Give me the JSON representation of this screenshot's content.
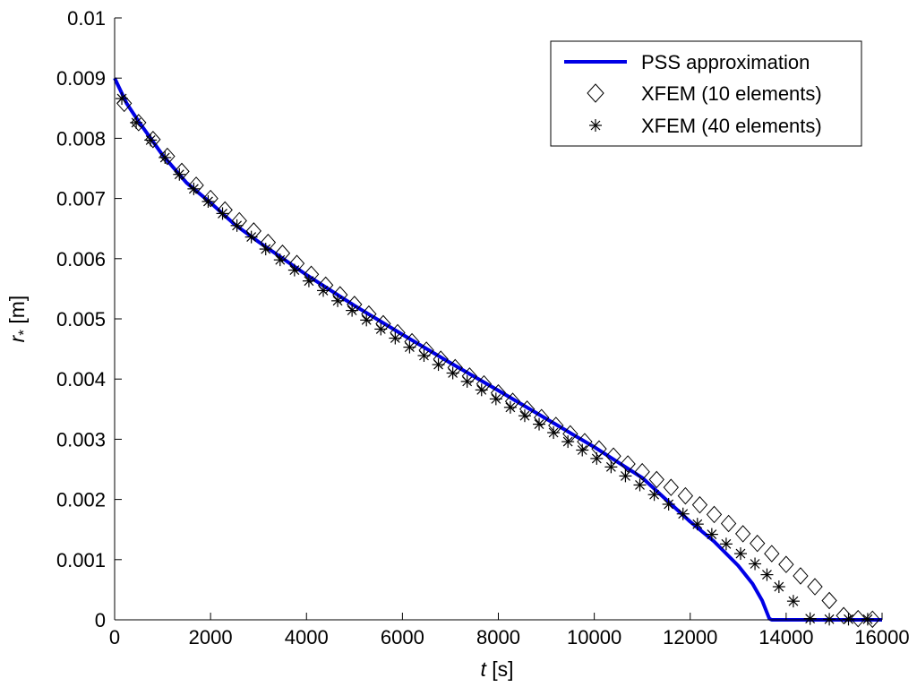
{
  "chart_data": {
    "type": "line",
    "title": "",
    "xlabel": {
      "symbol": "t",
      "unit": " [s]"
    },
    "ylabel": {
      "symbol": "r",
      "subscript": "*",
      "unit": " [m]"
    },
    "xlim": [
      0,
      16000
    ],
    "ylim": [
      0,
      0.01
    ],
    "xticks": [
      0,
      2000,
      4000,
      6000,
      8000,
      10000,
      12000,
      14000,
      16000
    ],
    "yticks": [
      0,
      0.001,
      0.002,
      0.003,
      0.004,
      0.005,
      0.006,
      0.007,
      0.008,
      0.009,
      0.01
    ],
    "xtick_labels": [
      "0",
      "2000",
      "4000",
      "6000",
      "8000",
      "10000",
      "12000",
      "14000",
      "16000"
    ],
    "ytick_labels": [
      "0",
      "0.001",
      "0.002",
      "0.003",
      "0.004",
      "0.005",
      "0.006",
      "0.007",
      "0.008",
      "0.009",
      "0.01"
    ],
    "grid": false,
    "legend_position": "top-right",
    "series": [
      {
        "name": "PSS approximation",
        "style": "line",
        "color": "#0000e6",
        "x": [
          0,
          250,
          500,
          1000,
          1500,
          2000,
          2500,
          3000,
          4000,
          5000,
          6000,
          7000,
          8000,
          9000,
          10000,
          11000,
          12000,
          12500,
          13000,
          13300,
          13500,
          13650,
          13700,
          14000,
          16000
        ],
        "y": [
          0.009,
          0.00858,
          0.00828,
          0.00772,
          0.00726,
          0.00693,
          0.00657,
          0.00628,
          0.00573,
          0.00522,
          0.00474,
          0.00427,
          0.00381,
          0.00334,
          0.00287,
          0.00236,
          0.00163,
          0.0013,
          0.0009,
          0.0006,
          0.00032,
          2e-05,
          0.0,
          0.0,
          0.0
        ]
      },
      {
        "name": "XFEM (10 elements)",
        "style": "marker-diamond",
        "color": "#000000",
        "x": [
          200,
          500,
          800,
          1100,
          1400,
          1700,
          2000,
          2300,
          2600,
          2900,
          3200,
          3500,
          3800,
          4100,
          4400,
          4700,
          5000,
          5300,
          5600,
          5900,
          6200,
          6500,
          6800,
          7100,
          7400,
          7700,
          8000,
          8300,
          8600,
          8900,
          9200,
          9500,
          9800,
          10100,
          10400,
          10700,
          11000,
          11300,
          11600,
          11900,
          12200,
          12500,
          12800,
          13100,
          13400,
          13700,
          14000,
          14300,
          14600,
          14900,
          15200,
          15500,
          15800
        ],
        "y": [
          0.00858,
          0.00826,
          0.00798,
          0.0077,
          0.00745,
          0.00722,
          0.007,
          0.00681,
          0.00663,
          0.00646,
          0.00627,
          0.00609,
          0.00592,
          0.00574,
          0.00556,
          0.0054,
          0.00524,
          0.00508,
          0.00492,
          0.00477,
          0.00462,
          0.00448,
          0.00433,
          0.00419,
          0.00405,
          0.00392,
          0.00377,
          0.00363,
          0.0035,
          0.00336,
          0.00323,
          0.00309,
          0.00296,
          0.00284,
          0.00272,
          0.00259,
          0.00246,
          0.00233,
          0.0022,
          0.00206,
          0.00191,
          0.00175,
          0.0016,
          0.00143,
          0.00127,
          0.0011,
          0.00092,
          0.00073,
          0.00055,
          0.00032,
          7e-05,
          2e-05,
          1e-05
        ]
      },
      {
        "name": "XFEM (40 elements)",
        "style": "marker-asterisk",
        "color": "#000000",
        "x": [
          150,
          450,
          750,
          1050,
          1350,
          1650,
          1950,
          2250,
          2550,
          2850,
          3150,
          3450,
          3750,
          4050,
          4350,
          4650,
          4950,
          5250,
          5550,
          5850,
          6150,
          6450,
          6750,
          7050,
          7350,
          7650,
          7950,
          8250,
          8550,
          8850,
          9150,
          9450,
          9750,
          10050,
          10350,
          10650,
          10950,
          11250,
          11550,
          11850,
          12150,
          12450,
          12750,
          13050,
          13350,
          13600,
          13850,
          14150,
          14500,
          14900,
          15300,
          15700
        ],
        "y": [
          0.00866,
          0.00826,
          0.00797,
          0.00768,
          0.0074,
          0.00716,
          0.00695,
          0.00675,
          0.00655,
          0.00636,
          0.00616,
          0.00598,
          0.00581,
          0.00563,
          0.00547,
          0.0053,
          0.00514,
          0.00498,
          0.00483,
          0.00468,
          0.00453,
          0.00439,
          0.00424,
          0.0041,
          0.00396,
          0.00382,
          0.00367,
          0.00353,
          0.00339,
          0.00325,
          0.00311,
          0.00296,
          0.00282,
          0.00268,
          0.00254,
          0.00239,
          0.00224,
          0.00208,
          0.00192,
          0.00176,
          0.00159,
          0.00142,
          0.00126,
          0.0011,
          0.00093,
          0.00075,
          0.00055,
          0.00031,
          2e-05,
          1e-05,
          1e-05,
          1e-05
        ]
      }
    ]
  }
}
